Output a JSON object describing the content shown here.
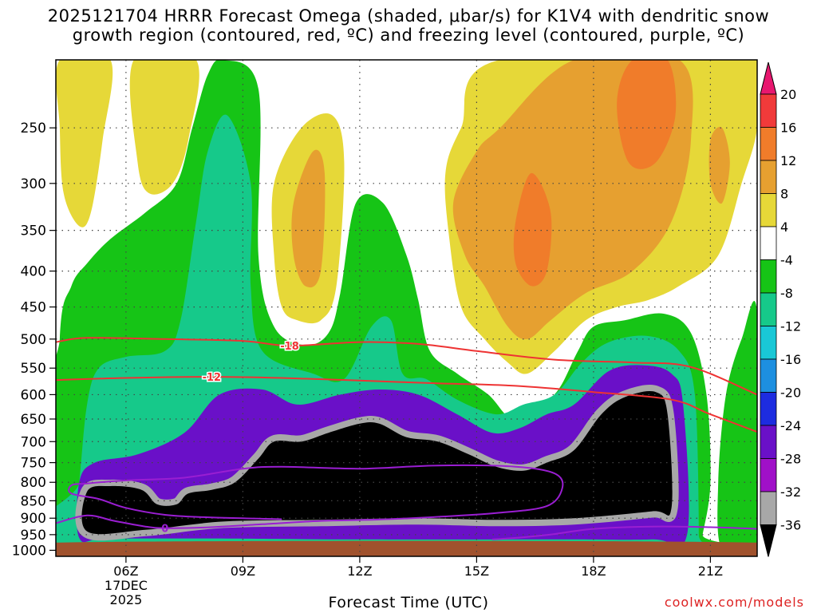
{
  "chart_data": {
    "type": "heatmap",
    "title_line1": "2025121704 HRRR Forecast Omega (shaded, μbar/s) for K1V4 with dendritic snow",
    "title_line2": "growth region (contoured, red, ºC) and freezing level (contoured, purple, ºC)",
    "xlabel": "Forecast Time (UTC)",
    "date_label": [
      "17DEC",
      "2025"
    ],
    "x_ticks": [
      {
        "hour": 6,
        "label": "06Z"
      },
      {
        "hour": 9,
        "label": "09Z"
      },
      {
        "hour": 12,
        "label": "12Z"
      },
      {
        "hour": 15,
        "label": "15Z"
      },
      {
        "hour": 18,
        "label": "18Z"
      },
      {
        "hour": 21,
        "label": "21Z"
      }
    ],
    "x_range_hours": [
      4.2,
      22.2
    ],
    "y_ticks": [
      250,
      300,
      350,
      400,
      450,
      500,
      550,
      600,
      650,
      700,
      750,
      800,
      850,
      900,
      950,
      1000
    ],
    "y_range_hPa": [
      200,
      1020
    ],
    "y_scale": "log-pressure",
    "grid": true,
    "colorbar": {
      "labels": [
        "20",
        "16",
        "12",
        "8",
        "4",
        "-4",
        "-8",
        "-12",
        "-16",
        "-20",
        "-24",
        "-28",
        "-32",
        "-36"
      ],
      "colors": [
        "#e8176f",
        "#f03a3a",
        "#f07c2a",
        "#e6a030",
        "#e6d838",
        "#ffffff",
        "#16c416",
        "#16c98a",
        "#19c8d6",
        "#1d8fe0",
        "#1d2ce0",
        "#6a10c8",
        "#a010c8",
        "#a8a8a8",
        "#000000"
      ]
    },
    "red_contours": [
      {
        "label": "-18",
        "label_hour": 10.2,
        "points": [
          [
            4.2,
            505
          ],
          [
            5,
            498
          ],
          [
            7,
            500
          ],
          [
            9,
            503
          ],
          [
            10.2,
            511
          ],
          [
            12,
            505
          ],
          [
            13.5,
            508
          ],
          [
            15,
            520
          ],
          [
            17,
            535
          ],
          [
            19,
            540
          ],
          [
            20.5,
            548
          ],
          [
            22.2,
            600
          ]
        ]
      },
      {
        "label": "-12",
        "label_hour": 8.2,
        "points": [
          [
            4.2,
            572
          ],
          [
            6,
            568
          ],
          [
            8.2,
            566
          ],
          [
            10,
            568
          ],
          [
            12,
            573
          ],
          [
            14,
            578
          ],
          [
            16,
            583
          ],
          [
            18,
            595
          ],
          [
            20,
            610
          ],
          [
            21,
            640
          ],
          [
            22.2,
            678
          ]
        ]
      }
    ],
    "purple_contours": [
      {
        "label": "0",
        "label_hour": 7.0,
        "points": [
          [
            4.2,
            915
          ],
          [
            5,
            892
          ],
          [
            5.7,
            908
          ],
          [
            6.5,
            925
          ],
          [
            7,
            930
          ],
          [
            8,
            928
          ],
          [
            9.5,
            918
          ],
          [
            11,
            908
          ],
          [
            12.5,
            904
          ],
          [
            14,
            896
          ],
          [
            15.5,
            885
          ],
          [
            16.8,
            865
          ],
          [
            17.2,
            815
          ],
          [
            17.0,
            777
          ],
          [
            16,
            760
          ],
          [
            14,
            757
          ],
          [
            12,
            765
          ],
          [
            10,
            760
          ],
          [
            9,
            765
          ],
          [
            7.5,
            788
          ],
          [
            6,
            795
          ],
          [
            5,
            803
          ],
          [
            4.6,
            808
          ],
          [
            4.6,
            830
          ],
          [
            5.3,
            845
          ],
          [
            6,
            870
          ],
          [
            7,
            890
          ],
          [
            8,
            897
          ],
          [
            10,
            903
          ]
        ]
      },
      {
        "label": "",
        "label_hour": null,
        "points": [
          [
            15.4,
            965
          ],
          [
            16.2,
            958
          ],
          [
            17,
            948
          ],
          [
            18,
            932
          ],
          [
            19.5,
            925
          ],
          [
            21,
            927
          ],
          [
            22.2,
            932
          ]
        ]
      }
    ],
    "regions": [
      {
        "name": "upper-yellow-left",
        "value": 4,
        "points": [
          [
            4.3,
            200
          ],
          [
            5.6,
            200
          ],
          [
            5.4,
            260
          ],
          [
            5.1,
            330
          ],
          [
            4.8,
            345
          ],
          [
            4.4,
            310
          ],
          [
            4.3,
            250
          ]
        ]
      },
      {
        "name": "upper-orange-left",
        "value": 8,
        "points": [
          [
            6.6,
            260
          ],
          [
            6.8,
            220
          ],
          [
            7.1,
            222
          ],
          [
            7.2,
            260
          ],
          [
            6.9,
            290
          ],
          [
            6.7,
            280
          ]
        ]
      },
      {
        "name": "upper-yellow-left-2",
        "value": 4,
        "points": [
          [
            6.2,
            200
          ],
          [
            7.8,
            200
          ],
          [
            7.6,
            260
          ],
          [
            7.2,
            300
          ],
          [
            6.6,
            310
          ],
          [
            6.3,
            280
          ]
        ]
      },
      {
        "name": "mid-yellow-column",
        "value": 4,
        "points": [
          [
            9.8,
            300
          ],
          [
            10.5,
            250
          ],
          [
            11.3,
            240
          ],
          [
            11.6,
            280
          ],
          [
            11.4,
            420
          ],
          [
            11.0,
            470
          ],
          [
            10.4,
            470
          ],
          [
            10.0,
            450
          ],
          [
            9.8,
            380
          ]
        ]
      },
      {
        "name": "mid-orange-column",
        "value": 8,
        "points": [
          [
            10.3,
            320
          ],
          [
            10.8,
            270
          ],
          [
            11.1,
            290
          ],
          [
            11.0,
            400
          ],
          [
            10.6,
            420
          ],
          [
            10.3,
            380
          ]
        ]
      },
      {
        "name": "right-yellow-block",
        "value": 4,
        "points": [
          [
            14.2,
            290
          ],
          [
            14.6,
            250
          ],
          [
            15.6,
            200
          ],
          [
            22.2,
            200
          ],
          [
            22.2,
            250
          ],
          [
            21.8,
            300
          ],
          [
            21.2,
            380
          ],
          [
            20.2,
            420
          ],
          [
            19.4,
            440
          ],
          [
            18.6,
            450
          ],
          [
            17.8,
            470
          ],
          [
            17.0,
            520
          ],
          [
            16.3,
            560
          ],
          [
            15.8,
            540
          ],
          [
            15.2,
            500
          ],
          [
            14.6,
            450
          ],
          [
            14.3,
            360
          ]
        ]
      },
      {
        "name": "right-orange-block",
        "value": 8,
        "points": [
          [
            14.4,
            320
          ],
          [
            15.0,
            270
          ],
          [
            15.6,
            250
          ],
          [
            17.5,
            200
          ],
          [
            20.2,
            200
          ],
          [
            20.5,
            260
          ],
          [
            20.0,
            340
          ],
          [
            19.0,
            400
          ],
          [
            17.8,
            430
          ],
          [
            16.9,
            470
          ],
          [
            16.3,
            500
          ],
          [
            15.8,
            480
          ],
          [
            15.2,
            420
          ],
          [
            14.7,
            380
          ]
        ]
      },
      {
        "name": "right-deeporange",
        "value": 12,
        "points": [
          [
            16.0,
            340
          ],
          [
            16.4,
            290
          ],
          [
            16.9,
            330
          ],
          [
            16.8,
            400
          ],
          [
            16.4,
            420
          ],
          [
            16.0,
            390
          ]
        ]
      },
      {
        "name": "right-deeporange-2",
        "value": 12,
        "points": [
          [
            18.6,
            230
          ],
          [
            19.0,
            200
          ],
          [
            19.9,
            200
          ],
          [
            20.1,
            240
          ],
          [
            19.6,
            280
          ],
          [
            18.9,
            280
          ]
        ]
      },
      {
        "name": "far-right-orange",
        "value": 8,
        "points": [
          [
            21.0,
            260
          ],
          [
            21.3,
            250
          ],
          [
            21.5,
            280
          ],
          [
            21.3,
            320
          ],
          [
            21.0,
            300
          ]
        ]
      },
      {
        "name": "upper-green-left",
        "value": -4,
        "points": [
          [
            4.3,
            1000
          ],
          [
            4.3,
            500
          ],
          [
            4.6,
            420
          ],
          [
            5.0,
            390
          ],
          [
            5.6,
            360
          ],
          [
            6.5,
            330
          ],
          [
            7.3,
            300
          ],
          [
            7.7,
            250
          ],
          [
            8.1,
            210
          ],
          [
            8.5,
            200
          ],
          [
            9.4,
            220
          ],
          [
            9.4,
            380
          ],
          [
            9.8,
            480
          ],
          [
            10.6,
            510
          ],
          [
            11.2,
            490
          ],
          [
            11.5,
            430
          ],
          [
            11.9,
            320
          ],
          [
            12.6,
            320
          ],
          [
            13.2,
            380
          ],
          [
            13.5,
            440
          ],
          [
            13.8,
            520
          ],
          [
            14.5,
            560
          ],
          [
            15.3,
            600
          ],
          [
            15.9,
            650
          ],
          [
            16.5,
            630
          ],
          [
            17.1,
            590
          ],
          [
            17.6,
            520
          ],
          [
            18.0,
            480
          ],
          [
            18.8,
            470
          ],
          [
            19.8,
            460
          ],
          [
            20.5,
            490
          ],
          [
            20.9,
            600
          ],
          [
            21.0,
            800
          ],
          [
            20.8,
            950
          ],
          [
            20.7,
            1000
          ]
        ]
      },
      {
        "name": "far-right-green",
        "value": -4,
        "points": [
          [
            21.3,
            1000
          ],
          [
            21.2,
            800
          ],
          [
            21.4,
            600
          ],
          [
            21.8,
            500
          ],
          [
            22.2,
            460
          ],
          [
            22.2,
            1000
          ]
        ]
      },
      {
        "name": "teal-left",
        "value": -8,
        "points": [
          [
            4.6,
            1000
          ],
          [
            4.8,
            800
          ],
          [
            5.0,
            620
          ],
          [
            5.3,
            550
          ],
          [
            6.0,
            530
          ],
          [
            7.0,
            520
          ],
          [
            7.4,
            470
          ],
          [
            7.8,
            340
          ],
          [
            8.1,
            270
          ],
          [
            8.6,
            240
          ],
          [
            9.2,
            300
          ],
          [
            9.2,
            420
          ],
          [
            9.5,
            520
          ],
          [
            10.8,
            560
          ],
          [
            11.6,
            570
          ],
          [
            12.3,
            480
          ],
          [
            12.8,
            470
          ],
          [
            13.1,
            560
          ],
          [
            13.7,
            570
          ],
          [
            14.5,
            610
          ],
          [
            15.5,
            640
          ],
          [
            16.2,
            620
          ],
          [
            17.0,
            600
          ],
          [
            17.7,
            540
          ],
          [
            18.4,
            505
          ],
          [
            19.4,
            495
          ],
          [
            20.2,
            520
          ],
          [
            20.6,
            600
          ],
          [
            20.7,
            950
          ],
          [
            20.6,
            1000
          ]
        ]
      },
      {
        "name": "purple-main",
        "value": -28,
        "points": [
          [
            4.8,
            960
          ],
          [
            4.8,
            800
          ],
          [
            5.2,
            750
          ],
          [
            6.3,
            730
          ],
          [
            7.5,
            680
          ],
          [
            8.4,
            600
          ],
          [
            9.5,
            590
          ],
          [
            10.4,
            620
          ],
          [
            11.5,
            600
          ],
          [
            12.5,
            590
          ],
          [
            13.5,
            600
          ],
          [
            14.5,
            640
          ],
          [
            15.4,
            680
          ],
          [
            16.1,
            670
          ],
          [
            16.8,
            640
          ],
          [
            17.5,
            620
          ],
          [
            18.4,
            555
          ],
          [
            19.3,
            545
          ],
          [
            20.0,
            560
          ],
          [
            20.3,
            620
          ],
          [
            20.4,
            950
          ],
          [
            19.5,
            965
          ],
          [
            17.0,
            965
          ],
          [
            12.0,
            965
          ],
          [
            8.0,
            962
          ],
          [
            5.5,
            962
          ]
        ]
      },
      {
        "name": "black-core",
        "value": -36,
        "points": [
          [
            5.0,
            940
          ],
          [
            5.0,
            825
          ],
          [
            5.6,
            810
          ],
          [
            6.4,
            820
          ],
          [
            6.8,
            860
          ],
          [
            7.3,
            860
          ],
          [
            7.6,
            830
          ],
          [
            8.2,
            820
          ],
          [
            8.8,
            800
          ],
          [
            9.4,
            740
          ],
          [
            9.8,
            700
          ],
          [
            10.5,
            700
          ],
          [
            11.2,
            680
          ],
          [
            12.0,
            660
          ],
          [
            12.5,
            660
          ],
          [
            13.2,
            690
          ],
          [
            14.0,
            700
          ],
          [
            14.8,
            730
          ],
          [
            15.5,
            760
          ],
          [
            16.2,
            770
          ],
          [
            16.8,
            750
          ],
          [
            17.5,
            720
          ],
          [
            18.2,
            640
          ],
          [
            18.8,
            605
          ],
          [
            19.6,
            595
          ],
          [
            19.9,
            640
          ],
          [
            20.0,
            870
          ],
          [
            19.5,
            880
          ],
          [
            17.5,
            900
          ],
          [
            15.5,
            905
          ],
          [
            13.5,
            900
          ],
          [
            11.0,
            905
          ],
          [
            8.5,
            910
          ],
          [
            6.5,
            935
          ]
        ]
      },
      {
        "name": "brown-ground",
        "value": null,
        "points": [
          [
            4.2,
            975
          ],
          [
            22.2,
            975
          ],
          [
            22.2,
            1020
          ],
          [
            4.2,
            1020
          ]
        ]
      }
    ]
  },
  "credit": "coolwx.com/models"
}
